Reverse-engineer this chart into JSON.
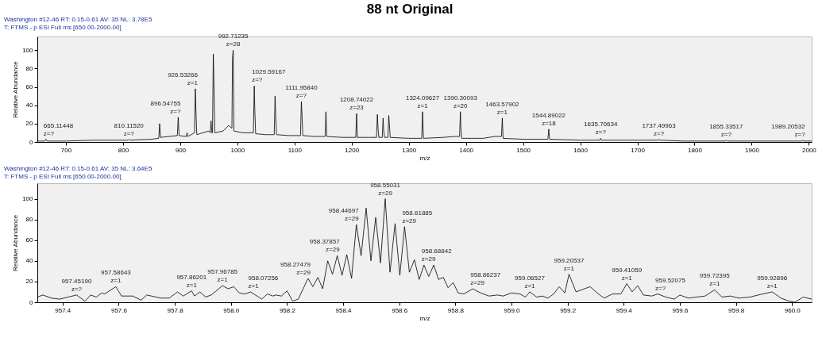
{
  "chart_data": [
    {
      "type": "line",
      "title": "88 nt Original",
      "subtitle": "Washington #12-46  RT: 0.15-0.61  AV: 35  NL: 3.78E5\nT: FTMS - p ESI Full ms [650.00-2000.00]",
      "xlabel": "m/z",
      "ylabel": "Relative Abundance",
      "xlim": [
        650,
        2005
      ],
      "ylim": [
        0,
        115
      ],
      "xticks": [
        700,
        800,
        900,
        1000,
        1100,
        1200,
        1300,
        1400,
        1500,
        1600,
        1700,
        1800,
        1900,
        2000
      ],
      "yticks": [
        0,
        20,
        40,
        60,
        80,
        100
      ],
      "series": [
        {
          "color": "#000000",
          "x": [
            650,
            663,
            665.1,
            667,
            700,
            750,
            800,
            808.5,
            810.1,
            812,
            850,
            862.5,
            864,
            865.5,
            880,
            895,
            896.5,
            898,
            910.5,
            912,
            913.5,
            925,
            926.5,
            927.5,
            929,
            950,
            952.5,
            954,
            955.5,
            956.5,
            957.9,
            959,
            960.5,
            975,
            985,
            990.5,
            991.5,
            992.7,
            994,
            1010,
            1028,
            1029.6,
            1030.5,
            1032,
            1050,
            1064.5,
            1066,
            1067,
            1068.5,
            1090,
            1110.5,
            1111.96,
            1113,
            1114.5,
            1135,
            1153.5,
            1155,
            1156.5,
            1185,
            1207.2,
            1208.7,
            1210,
            1230,
            1243.5,
            1245,
            1246,
            1247.5,
            1253.5,
            1255,
            1256,
            1257.5,
            1263.5,
            1265,
            1266,
            1267.5,
            1300,
            1322.6,
            1324.1,
            1325.6,
            1360,
            1380,
            1388.8,
            1390.3,
            1391,
            1392.5,
            1430,
            1450,
            1462.1,
            1463.6,
            1465,
            1500,
            1543.4,
            1544.9,
            1546.4,
            1600,
            1634.2,
            1635.7,
            1637.2,
            1700,
            1736,
            1737.5,
            1739,
            1780,
            1853.8,
            1855.3,
            1856.8,
            1900,
            1987.7,
            1989.2,
            1990.7,
            2005
          ],
          "values": [
            1,
            1,
            3,
            1,
            1,
            2,
            2,
            2,
            3,
            2,
            3,
            4,
            20,
            5,
            6,
            7,
            27,
            7,
            6,
            10,
            6,
            10,
            58,
            35,
            8,
            12,
            10,
            23,
            10,
            10,
            96,
            65,
            10,
            12,
            18,
            15,
            91,
            100,
            12,
            10,
            10,
            61,
            36,
            9,
            8,
            8,
            50,
            30,
            8,
            7,
            7,
            44,
            32,
            7,
            6,
            6,
            33,
            6,
            5,
            5,
            31,
            5,
            5,
            5,
            30,
            17,
            5,
            5,
            26,
            13,
            5,
            5,
            29,
            20,
            5,
            4,
            4,
            33,
            4,
            5,
            6,
            6,
            33,
            17,
            4,
            4,
            6,
            6,
            26,
            4,
            3,
            3,
            14,
            3,
            2,
            2,
            4,
            2,
            2,
            2,
            3,
            2,
            1,
            1,
            2,
            1,
            1,
            1,
            2,
            1,
            1
          ]
        }
      ],
      "annotations": [
        {
          "text": "665.11448\nz=?",
          "x": 665.1,
          "y": 3
        },
        {
          "text": "810.11520\nz=?",
          "x": 810.1,
          "y": 3
        },
        {
          "text": "896.54755\nz=?",
          "x": 896.5,
          "y": 27
        },
        {
          "text": "926.53266\nz=1",
          "x": 926.5,
          "y": 58
        },
        {
          "text": "992.71235\nz=28",
          "x": 992.7,
          "y": 100
        },
        {
          "text": "1029.59167\nz=?",
          "x": 1029.6,
          "y": 61
        },
        {
          "text": "1111.95840\nz=?",
          "x": 1111.96,
          "y": 44
        },
        {
          "text": "1208.74022\nz=23",
          "x": 1208.7,
          "y": 31
        },
        {
          "text": "1324.09627\nz=1",
          "x": 1324.1,
          "y": 33
        },
        {
          "text": "1390.30093\nz=20",
          "x": 1390.3,
          "y": 33
        },
        {
          "text": "1463.57902\nz=1",
          "x": 1463.6,
          "y": 26
        },
        {
          "text": "1544.89022\nz=18",
          "x": 1544.9,
          "y": 14
        },
        {
          "text": "1635.70634\nz=?",
          "x": 1635.7,
          "y": 4
        },
        {
          "text": "1737.49963\nz=?",
          "x": 1737.5,
          "y": 3
        },
        {
          "text": "1855.33517\nz=?",
          "x": 1855.3,
          "y": 2
        },
        {
          "text": "1989.20532\nz=?",
          "x": 1989.2,
          "y": 2
        }
      ]
    },
    {
      "type": "line",
      "subtitle": "Washington #12-46  RT: 0.15-0.61  AV: 35  NL: 3.64E5\nT: FTMS - p ESI Full ms [650.00-2000.00]",
      "xlabel": "m/z",
      "ylabel": "Relative Abundance",
      "xlim": [
        957.31,
        960.07
      ],
      "ylim": [
        0,
        115
      ],
      "xticks": [
        957.4,
        957.6,
        957.8,
        {
          "value": 958,
          "label": "958.0"
        },
        958.2,
        958.4,
        958.6,
        958.8,
        {
          "value": 959,
          "label": "959.0"
        },
        959.2,
        959.4,
        959.6,
        959.8,
        {
          "value": 960,
          "label": "960.0"
        }
      ],
      "yticks": [
        0,
        20,
        40,
        60,
        80,
        100
      ],
      "series": [
        {
          "color": "#000000",
          "x": [
            957.31,
            957.33,
            957.36,
            957.39,
            957.45,
            957.48,
            957.5,
            957.52,
            957.54,
            957.55,
            957.59,
            957.61,
            957.65,
            957.68,
            957.7,
            957.75,
            957.78,
            957.81,
            957.83,
            957.86,
            957.87,
            957.89,
            957.91,
            957.93,
            957.97,
            957.99,
            958.01,
            958.03,
            958.05,
            958.07,
            958.11,
            958.13,
            958.15,
            958.16,
            958.18,
            958.2,
            958.22,
            958.24,
            958.275,
            958.292,
            958.31,
            958.327,
            958.345,
            958.362,
            958.379,
            958.396,
            958.413,
            958.43,
            958.447,
            958.464,
            958.482,
            958.499,
            958.516,
            958.533,
            958.55,
            958.567,
            958.585,
            958.602,
            958.619,
            958.636,
            958.654,
            958.671,
            958.688,
            958.705,
            958.723,
            958.74,
            958.757,
            958.774,
            958.792,
            958.81,
            958.83,
            958.862,
            958.89,
            958.92,
            958.95,
            958.97,
            959,
            959.03,
            959.05,
            959.065,
            959.09,
            959.11,
            959.13,
            959.15,
            959.17,
            959.19,
            959.205,
            959.23,
            959.25,
            959.28,
            959.31,
            959.33,
            959.36,
            959.39,
            959.411,
            959.43,
            959.45,
            959.47,
            959.5,
            959.521,
            959.55,
            959.58,
            959.6,
            959.63,
            959.66,
            959.69,
            959.724,
            959.75,
            959.78,
            959.81,
            959.85,
            959.88,
            959.929,
            959.96,
            959.99,
            960.01,
            960.04,
            960.07
          ],
          "values": [
            5,
            7,
            4,
            3,
            7,
            1,
            7,
            5,
            9,
            8,
            15,
            6,
            6,
            2,
            7,
            4,
            4,
            10,
            6,
            11,
            6,
            10,
            5,
            7,
            16,
            13,
            15,
            9,
            8,
            10,
            3,
            8,
            6,
            7,
            6,
            11,
            1,
            3,
            23,
            15,
            24,
            13,
            40,
            27,
            45,
            26,
            46,
            23,
            75,
            45,
            91,
            40,
            82,
            38,
            100,
            29,
            76,
            26,
            73,
            29,
            41,
            22,
            36,
            25,
            36,
            22,
            24,
            14,
            19,
            9,
            8,
            13,
            9,
            6,
            7,
            6,
            9,
            8,
            5,
            10,
            5,
            6,
            4,
            8,
            15,
            9,
            27,
            10,
            12,
            15,
            8,
            4,
            8,
            8,
            18,
            10,
            16,
            7,
            6,
            8,
            5,
            3,
            7,
            4,
            5,
            6,
            12,
            5,
            6,
            4,
            5,
            7,
            10,
            4,
            1,
            0,
            5,
            3
          ]
        }
      ],
      "annotations": [
        {
          "text": "957.45190\nz=?",
          "x": 957.45,
          "y": 7
        },
        {
          "text": "957.58643\nz=1",
          "x": 957.59,
          "y": 15
        },
        {
          "text": "957.86201\nz=1",
          "x": 957.86,
          "y": 11
        },
        {
          "text": "957.96785\nz=1",
          "x": 957.97,
          "y": 16
        },
        {
          "text": "958.07256\nz=1",
          "x": 958.07,
          "y": 10
        },
        {
          "text": "958.27479\nz=29",
          "x": 958.275,
          "y": 23
        },
        {
          "text": "958.37857\nz=29",
          "x": 958.379,
          "y": 45
        },
        {
          "text": "958.44697\nz=29",
          "x": 958.447,
          "y": 75
        },
        {
          "text": "958.55031\nz=29",
          "x": 958.55,
          "y": 100
        },
        {
          "text": "958.61885\nz=29",
          "x": 958.619,
          "y": 73
        },
        {
          "text": "958.68842\nz=29",
          "x": 958.688,
          "y": 36
        },
        {
          "text": "958.86237\nz=29",
          "x": 958.862,
          "y": 13
        },
        {
          "text": "959.06527\nz=1",
          "x": 959.065,
          "y": 10
        },
        {
          "text": "959.20537\nz=1",
          "x": 959.205,
          "y": 27
        },
        {
          "text": "959.41059\nz=1",
          "x": 959.411,
          "y": 18
        },
        {
          "text": "959.52075\nz=?",
          "x": 959.521,
          "y": 8
        },
        {
          "text": "959.72395\nz=1",
          "x": 959.724,
          "y": 12
        },
        {
          "text": "959.92896\nz=1",
          "x": 959.929,
          "y": 10
        }
      ]
    }
  ]
}
